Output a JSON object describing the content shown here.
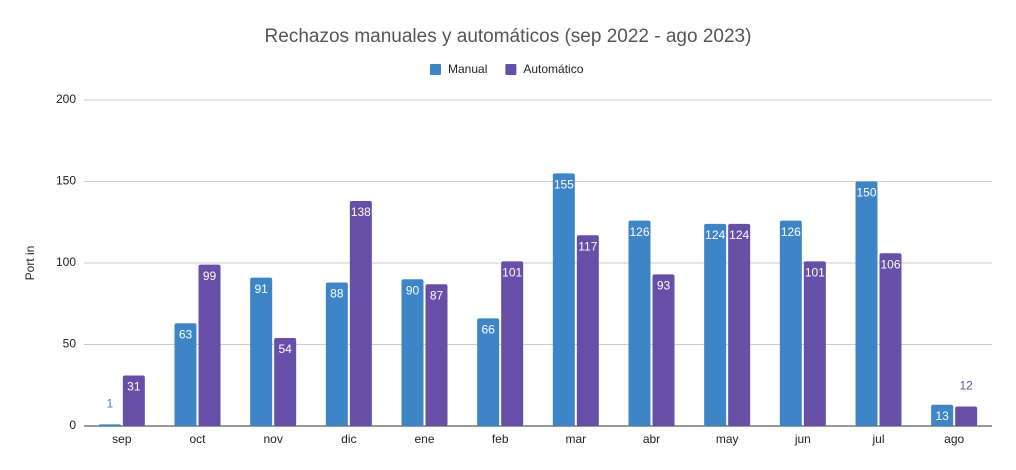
{
  "chart_data": {
    "type": "bar",
    "title": "Rechazos manuales y automáticos (sep 2022 - ago 2023)",
    "y_label": "Port in",
    "categories": [
      "sep",
      "oct",
      "nov",
      "dic",
      "ene",
      "feb",
      "mar",
      "abr",
      "may",
      "jun",
      "jul",
      "ago"
    ],
    "series": [
      {
        "name": "Manual",
        "color": "#3d85c6",
        "values": [
          1,
          63,
          91,
          88,
          90,
          66,
          155,
          126,
          124,
          126,
          150,
          13
        ]
      },
      {
        "name": "Automático",
        "color": "#674ea7",
        "values": [
          31,
          99,
          54,
          138,
          87,
          101,
          117,
          93,
          124,
          101,
          106,
          12
        ]
      }
    ],
    "ylim": [
      0,
      200
    ],
    "yticks": [
      0,
      50,
      100,
      150,
      200
    ],
    "grid": true,
    "legend": "top",
    "data_labels": true
  }
}
